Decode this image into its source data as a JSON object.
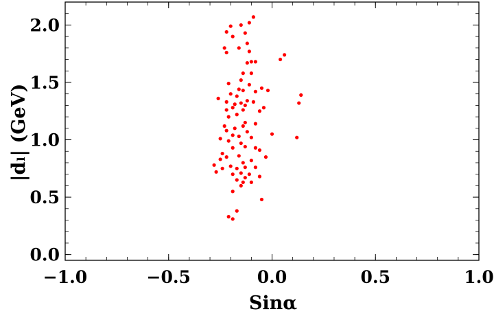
{
  "chart_data": {
    "type": "scatter",
    "xlabel": "Sinα",
    "ylabel": "|dₗ| (GeV)",
    "xlim": [
      -1.0,
      1.0
    ],
    "ylim": [
      -0.05,
      2.2
    ],
    "xticks": [
      -1.0,
      -0.5,
      0.0,
      0.5,
      1.0
    ],
    "xtick_labels": [
      "−1.0",
      "−0.5",
      "0.0",
      "0.5",
      "1.0"
    ],
    "yticks": [
      0.0,
      0.5,
      1.0,
      1.5,
      2.0
    ],
    "ytick_labels": [
      "0.0",
      "0.5",
      "1.0",
      "1.5",
      "2.0"
    ],
    "grid": false,
    "series": [
      {
        "color": "#ff0000",
        "points": [
          [
            -0.09,
            2.07
          ],
          [
            -0.11,
            2.02
          ],
          [
            -0.15,
            2.0
          ],
          [
            -0.2,
            1.99
          ],
          [
            -0.22,
            1.94
          ],
          [
            -0.13,
            1.93
          ],
          [
            -0.19,
            1.9
          ],
          [
            -0.23,
            1.8
          ],
          [
            -0.16,
            1.8
          ],
          [
            -0.12,
            1.84
          ],
          [
            -0.22,
            1.76
          ],
          [
            -0.11,
            1.77
          ],
          [
            0.06,
            1.74
          ],
          [
            0.04,
            1.7
          ],
          [
            -0.08,
            1.68
          ],
          [
            -0.1,
            1.68
          ],
          [
            -0.12,
            1.67
          ],
          [
            -0.14,
            1.58
          ],
          [
            -0.1,
            1.58
          ],
          [
            -0.15,
            1.52
          ],
          [
            -0.21,
            1.49
          ],
          [
            -0.11,
            1.48
          ],
          [
            -0.16,
            1.44
          ],
          [
            -0.14,
            1.43
          ],
          [
            -0.08,
            1.42
          ],
          [
            -0.05,
            1.45
          ],
          [
            -0.02,
            1.43
          ],
          [
            -0.2,
            1.4
          ],
          [
            -0.17,
            1.38
          ],
          [
            0.14,
            1.39
          ],
          [
            -0.26,
            1.36
          ],
          [
            -0.22,
            1.33
          ],
          [
            -0.12,
            1.34
          ],
          [
            -0.09,
            1.33
          ],
          [
            -0.15,
            1.32
          ],
          [
            -0.18,
            1.31
          ],
          [
            -0.13,
            1.3
          ],
          [
            -0.19,
            1.28
          ],
          [
            -0.22,
            1.26
          ],
          [
            -0.14,
            1.26
          ],
          [
            -0.06,
            1.25
          ],
          [
            -0.04,
            1.28
          ],
          [
            0.13,
            1.32
          ],
          [
            -0.17,
            1.22
          ],
          [
            -0.21,
            1.2
          ],
          [
            -0.13,
            1.15
          ],
          [
            -0.08,
            1.14
          ],
          [
            -0.23,
            1.12
          ],
          [
            -0.18,
            1.1
          ],
          [
            -0.14,
            1.12
          ],
          [
            -0.22,
            1.08
          ],
          [
            -0.12,
            1.07
          ],
          [
            0.0,
            1.05
          ],
          [
            -0.19,
            1.04
          ],
          [
            -0.16,
            1.03
          ],
          [
            -0.25,
            1.01
          ],
          [
            -0.1,
            1.02
          ],
          [
            0.12,
            1.02
          ],
          [
            -0.21,
            0.99
          ],
          [
            -0.15,
            0.97
          ],
          [
            -0.13,
            0.94
          ],
          [
            -0.08,
            0.93
          ],
          [
            -0.19,
            0.93
          ],
          [
            -0.06,
            0.91
          ],
          [
            -0.24,
            0.88
          ],
          [
            -0.16,
            0.86
          ],
          [
            -0.22,
            0.85
          ],
          [
            -0.03,
            0.85
          ],
          [
            -0.25,
            0.83
          ],
          [
            -0.1,
            0.82
          ],
          [
            -0.14,
            0.8
          ],
          [
            -0.28,
            0.78
          ],
          [
            -0.2,
            0.77
          ],
          [
            -0.13,
            0.76
          ],
          [
            -0.17,
            0.75
          ],
          [
            -0.08,
            0.76
          ],
          [
            -0.24,
            0.75
          ],
          [
            -0.27,
            0.72
          ],
          [
            -0.15,
            0.71
          ],
          [
            -0.19,
            0.7
          ],
          [
            -0.11,
            0.7
          ],
          [
            -0.06,
            0.68
          ],
          [
            -0.13,
            0.67
          ],
          [
            -0.17,
            0.65
          ],
          [
            -0.14,
            0.63
          ],
          [
            -0.1,
            0.63
          ],
          [
            -0.15,
            0.6
          ],
          [
            -0.19,
            0.55
          ],
          [
            -0.05,
            0.48
          ],
          [
            -0.17,
            0.38
          ],
          [
            -0.21,
            0.33
          ],
          [
            -0.19,
            0.31
          ]
        ]
      }
    ]
  }
}
